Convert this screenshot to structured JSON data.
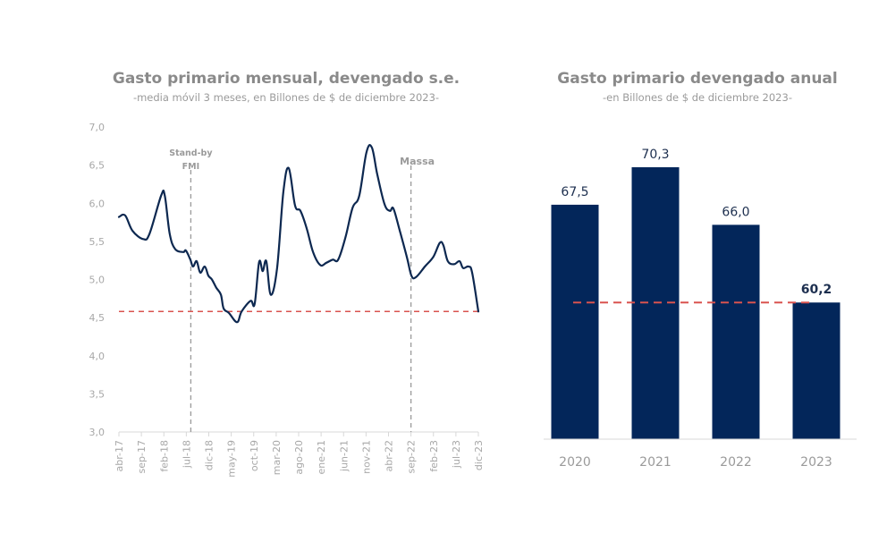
{
  "chart_data": [
    {
      "type": "line",
      "title": "Gasto primario mensual, devengado s.e.",
      "subtitle": "-media móvil 3 meses, en Billones de $ de diciembre 2023-",
      "xlabel": "",
      "ylabel": "",
      "ylim": [
        3.0,
        7.0
      ],
      "yticks": [
        "3,0",
        "3,5",
        "4,0",
        "4,5",
        "5,0",
        "5,5",
        "6,0",
        "6,5",
        "7,0"
      ],
      "ytick_values": [
        3.0,
        3.5,
        4.0,
        4.5,
        5.0,
        5.5,
        6.0,
        6.5,
        7.0
      ],
      "xticks": [
        "abr-17",
        "sep-17",
        "feb-18",
        "jul-18",
        "dic-18",
        "may-19",
        "oct-19",
        "mar-20",
        "ago-20",
        "ene-21",
        "jun-21",
        "nov-21",
        "abr-22",
        "sep-22",
        "feb-23",
        "jul-23",
        "dic-23"
      ],
      "x_start": "abr-17",
      "x_end": "dic-23",
      "grid": false,
      "series": [
        {
          "name": "Gasto primario mensual",
          "color": "#0d2850",
          "points": [
            [
              0,
              5.82
            ],
            [
              1.4,
              5.84
            ],
            [
              3,
              5.64
            ],
            [
              5.4,
              5.53
            ],
            [
              6.8,
              5.6
            ],
            [
              9.4,
              6.1
            ],
            [
              10.2,
              6.1
            ],
            [
              11.3,
              5.6
            ],
            [
              12.5,
              5.4
            ],
            [
              14.3,
              5.36
            ],
            [
              14.9,
              5.38
            ],
            [
              15.9,
              5.26
            ],
            [
              16.5,
              5.17
            ],
            [
              17.3,
              5.24
            ],
            [
              18.1,
              5.09
            ],
            [
              19.1,
              5.17
            ],
            [
              19.9,
              5.05
            ],
            [
              20.7,
              5.0
            ],
            [
              21.7,
              4.89
            ],
            [
              22.7,
              4.8
            ],
            [
              23.3,
              4.62
            ],
            [
              24.5,
              4.56
            ],
            [
              26.3,
              4.44
            ],
            [
              27.3,
              4.58
            ],
            [
              29.3,
              4.72
            ],
            [
              30.2,
              4.68
            ],
            [
              31.2,
              5.23
            ],
            [
              32.0,
              5.11
            ],
            [
              32.8,
              5.24
            ],
            [
              33.8,
              4.8
            ],
            [
              35.2,
              5.15
            ],
            [
              36.6,
              6.15
            ],
            [
              37.8,
              6.46
            ],
            [
              39.2,
              5.97
            ],
            [
              40.4,
              5.9
            ],
            [
              41.8,
              5.67
            ],
            [
              43.2,
              5.36
            ],
            [
              44.8,
              5.19
            ],
            [
              46.2,
              5.22
            ],
            [
              47.6,
              5.26
            ],
            [
              48.8,
              5.26
            ],
            [
              50.4,
              5.55
            ],
            [
              52.0,
              5.94
            ],
            [
              53.5,
              6.1
            ],
            [
              55.1,
              6.67
            ],
            [
              56.3,
              6.73
            ],
            [
              57.5,
              6.38
            ],
            [
              59.1,
              5.99
            ],
            [
              60.3,
              5.9
            ],
            [
              61.1,
              5.93
            ],
            [
              62.5,
              5.64
            ],
            [
              64.1,
              5.29
            ],
            [
              65.1,
              5.05
            ],
            [
              66.1,
              5.03
            ],
            [
              68.1,
              5.17
            ],
            [
              70.0,
              5.3
            ],
            [
              71.4,
              5.48
            ],
            [
              72.2,
              5.45
            ],
            [
              73.2,
              5.24
            ],
            [
              74.6,
              5.2
            ],
            [
              75.8,
              5.24
            ],
            [
              76.6,
              5.15
            ],
            [
              77.8,
              5.17
            ],
            [
              78.6,
              5.09
            ],
            [
              80,
              4.58
            ]
          ]
        }
      ],
      "reference_line": {
        "value": 4.58,
        "color": "#d9534f",
        "style": "dashed"
      },
      "annotations": [
        {
          "label_lines": [
            "Stand-by",
            "FMI"
          ],
          "x_month_index": 16,
          "style": "dashed-vertical"
        },
        {
          "label_lines": [
            "Massa"
          ],
          "x_month_index": 65,
          "style": "dashed-vertical"
        }
      ]
    },
    {
      "type": "bar",
      "title": "Gasto primario devengado anual",
      "subtitle": "-en Billones de $ de diciembre 2023-",
      "categories": [
        "2020",
        "2021",
        "2022",
        "2023"
      ],
      "values": [
        67.5,
        70.3,
        66.0,
        60.2
      ],
      "value_labels": [
        "67,5",
        "70,3",
        "66,0",
        "60,2"
      ],
      "bar_color": "#03265a",
      "ylim": [
        50.0,
        71.5
      ],
      "reference_line": {
        "value": 60.2,
        "color": "#d9534f",
        "style": "dashed"
      },
      "xlabel": "",
      "ylabel": ""
    }
  ]
}
